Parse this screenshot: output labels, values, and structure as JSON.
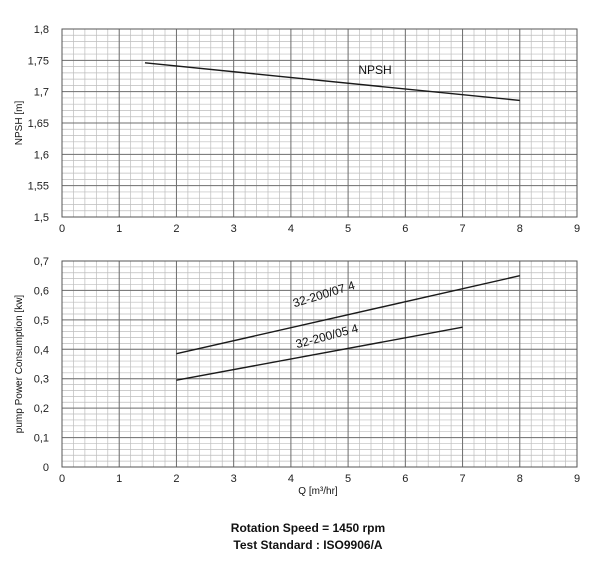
{
  "chart_data": [
    {
      "type": "line",
      "title": "",
      "xlabel": "",
      "ylabel": "NPSH [m]",
      "xlim": [
        0,
        9
      ],
      "ylim": [
        1.5,
        1.8
      ],
      "x_ticks": [
        "0",
        "1",
        "2",
        "3",
        "4",
        "5",
        "6",
        "7",
        "8",
        "9"
      ],
      "y_ticks": [
        "1,5",
        "1,55",
        "1,6",
        "1,65",
        "1,7",
        "1,75",
        "1,8"
      ],
      "grid": true,
      "series": [
        {
          "name": "NPSH",
          "x": [
            1.45,
            8.0
          ],
          "y": [
            1.746,
            1.686
          ]
        }
      ]
    },
    {
      "type": "line",
      "title": "",
      "xlabel": "Q [m³/hr]",
      "ylabel": "pump Power Consumption [kw]",
      "xlim": [
        0,
        9
      ],
      "ylim": [
        0,
        0.7
      ],
      "x_ticks": [
        "0",
        "1",
        "2",
        "3",
        "4",
        "5",
        "6",
        "7",
        "8",
        "9"
      ],
      "y_ticks": [
        "0",
        "0,1",
        "0,2",
        "0,3",
        "0,4",
        "0,5",
        "0,6",
        "0,7"
      ],
      "grid": true,
      "series": [
        {
          "name": "32-200/07 4",
          "x": [
            2,
            8
          ],
          "y": [
            0.385,
            0.65
          ]
        },
        {
          "name": "32-200/05 4",
          "x": [
            2,
            7
          ],
          "y": [
            0.295,
            0.475
          ]
        }
      ]
    }
  ],
  "footer": {
    "line1": "Rotation Speed = 1450 rpm",
    "line2": "Test Standard : ISO9906/A"
  }
}
